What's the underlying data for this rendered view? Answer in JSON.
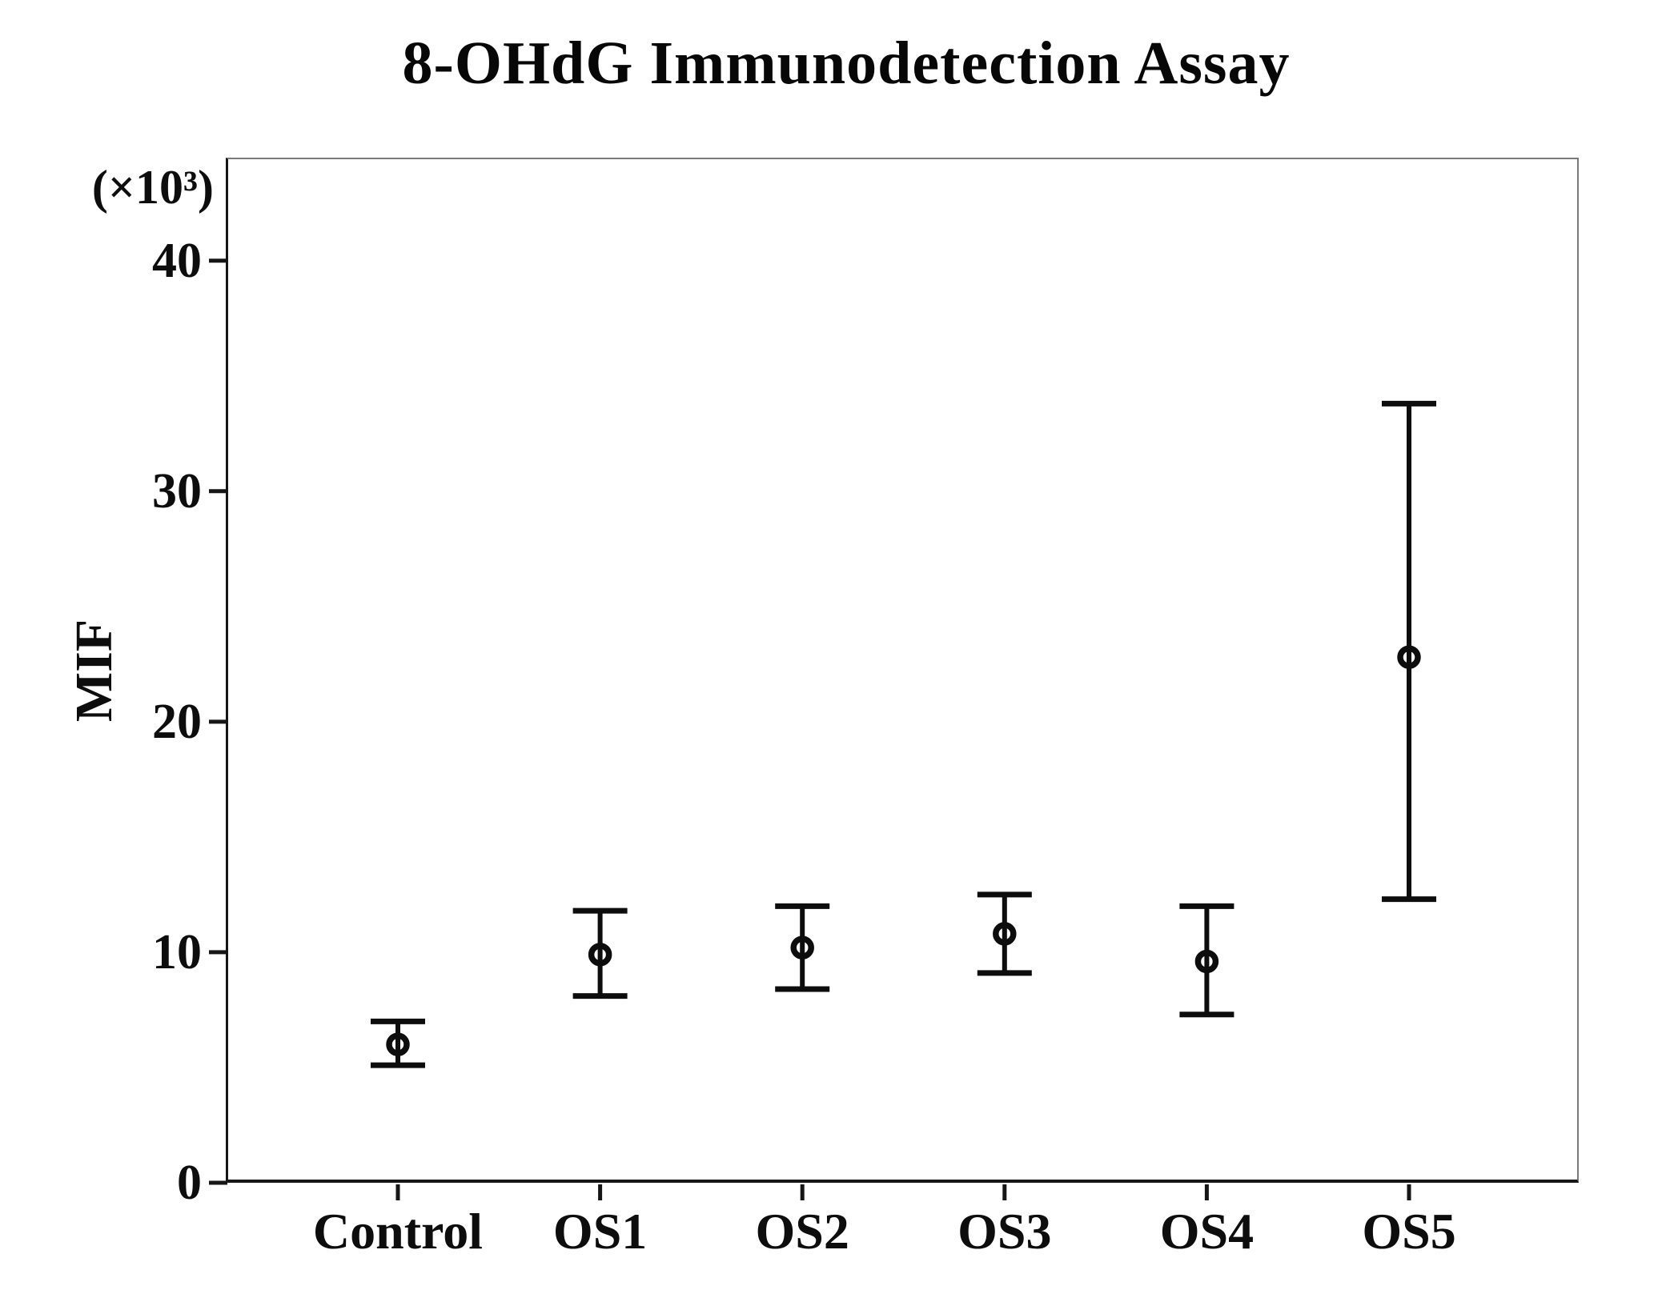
{
  "chart_data": {
    "type": "scatter",
    "subtype": "mean-with-error-bars",
    "title": "8-OHdG Immunodetection Assay",
    "xlabel": "",
    "ylabel": "MIF",
    "y_unit": "(×10³)",
    "categories": [
      "Control",
      "OS1",
      "OS2",
      "OS3",
      "OS4",
      "OS5"
    ],
    "series": [
      {
        "name": "MIF (×10³)",
        "means": [
          6.0,
          9.9,
          10.2,
          10.8,
          9.6,
          22.8
        ],
        "upper": [
          7.0,
          11.8,
          12.0,
          12.5,
          12.0,
          33.8
        ],
        "lower": [
          5.1,
          8.1,
          8.4,
          9.1,
          7.3,
          12.3
        ]
      }
    ],
    "yticks": [
      0,
      10,
      20,
      30,
      40
    ],
    "ylim": [
      0,
      44.4
    ],
    "grid": false,
    "legend": false,
    "marker": "open-circle",
    "marker_color": "#0d0d0d"
  }
}
